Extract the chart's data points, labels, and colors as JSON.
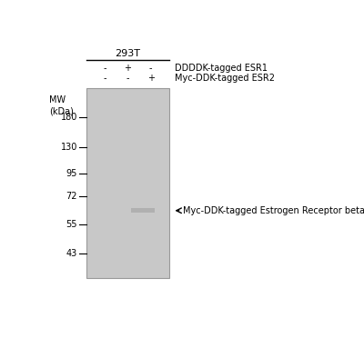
{
  "title": "293T",
  "lane_labels_row1": [
    "-",
    "+",
    "-"
  ],
  "lane_labels_row2": [
    "-",
    "-",
    "+"
  ],
  "row1_label": "DDDDK-tagged ESR1",
  "row2_label": "Myc-DDK-tagged ESR2",
  "mw_label": "MW\n(kDa)",
  "mw_marks": [
    180,
    130,
    95,
    72,
    55,
    43
  ],
  "band_annotation": "← Myc-DDK-tagged Estrogen Receptor beta",
  "gel_color": "#c8c8c8",
  "band_color": "#b0b0b0",
  "bg_color": "#ffffff",
  "font_size_title": 8,
  "font_size_labels": 7,
  "font_size_mw": 7,
  "font_size_annotation": 7
}
